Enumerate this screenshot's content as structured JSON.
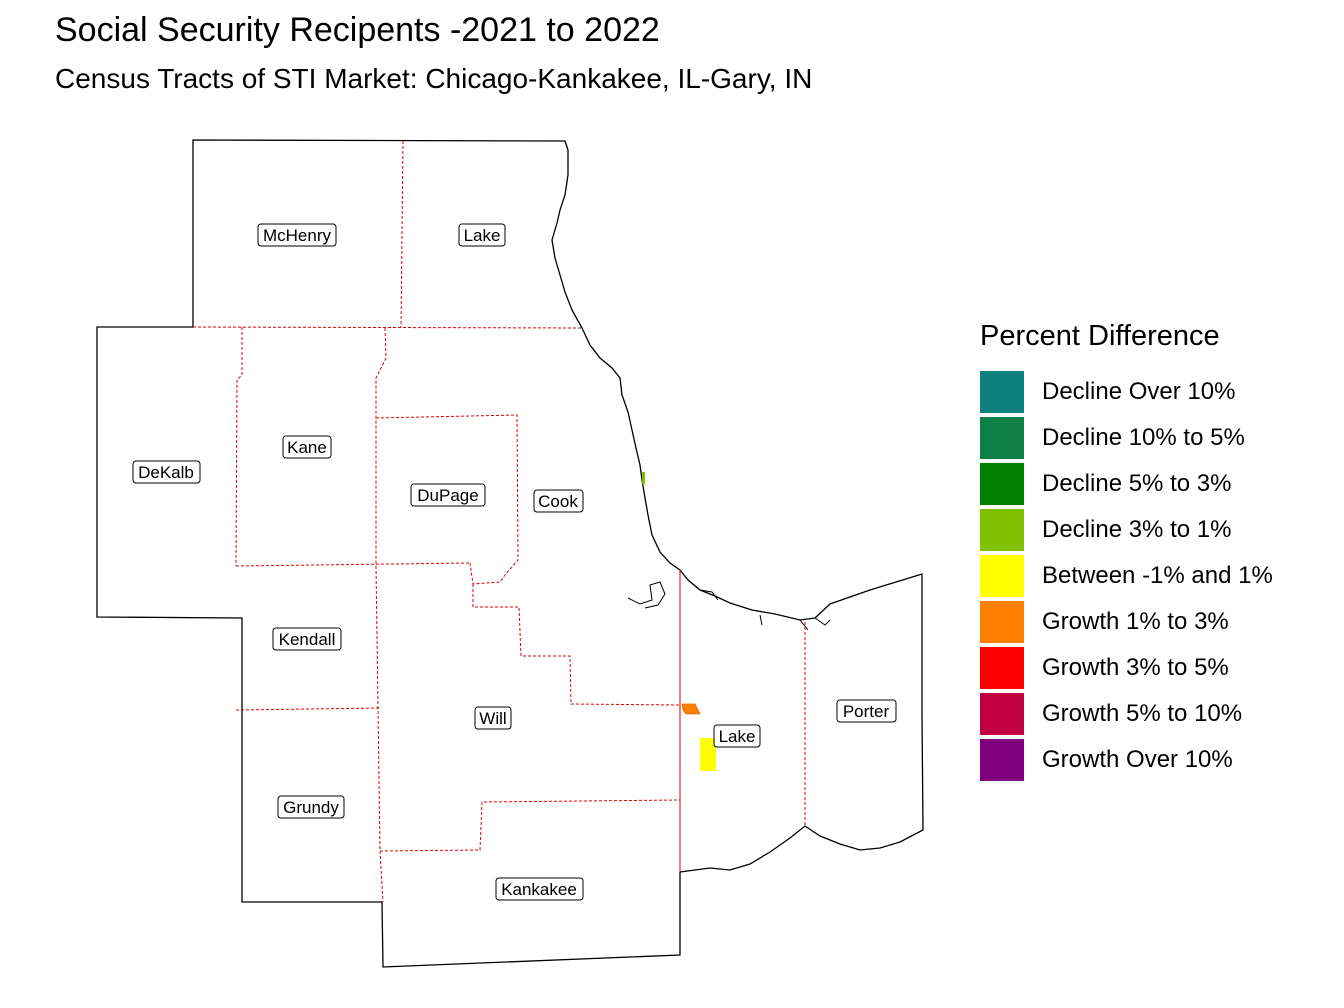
{
  "title": "Social Security Recipents -2021 to 2022",
  "subtitle": "Census Tracts of STI Market: Chicago-Kankakee, IL-Gary, IN",
  "counties": {
    "mchenry": "McHenry",
    "lake_il": "Lake",
    "dekalb": "DeKalb",
    "kane": "Kane",
    "dupage": "DuPage",
    "cook": "Cook",
    "kendall": "Kendall",
    "will": "Will",
    "grundy": "Grundy",
    "kankakee": "Kankakee",
    "lake_in": "Lake",
    "porter": "Porter"
  },
  "legend": {
    "title": "Percent Difference",
    "items": [
      {
        "label": "Decline Over 10%",
        "color": "#0F8080"
      },
      {
        "label": "Decline 10% to 5%",
        "color": "#0E8045"
      },
      {
        "label": "Decline 5% to 3%",
        "color": "#008000"
      },
      {
        "label": "Decline 3% to 1%",
        "color": "#80C000"
      },
      {
        "label": "Between -1% and 1%",
        "color": "#FFFF00"
      },
      {
        "label": "Growth 1% to 3%",
        "color": "#FF8000"
      },
      {
        "label": "Growth 3% to 5%",
        "color": "#FF0000"
      },
      {
        "label": "Growth 5% to 10%",
        "color": "#C00040"
      },
      {
        "label": "Growth Over 10%",
        "color": "#800080"
      }
    ]
  },
  "highlighted_tracts": [
    {
      "category": "Growth 1% to 3%",
      "color": "#FF8000"
    },
    {
      "category": "Between -1% and 1%",
      "color": "#FFFF00"
    }
  ]
}
